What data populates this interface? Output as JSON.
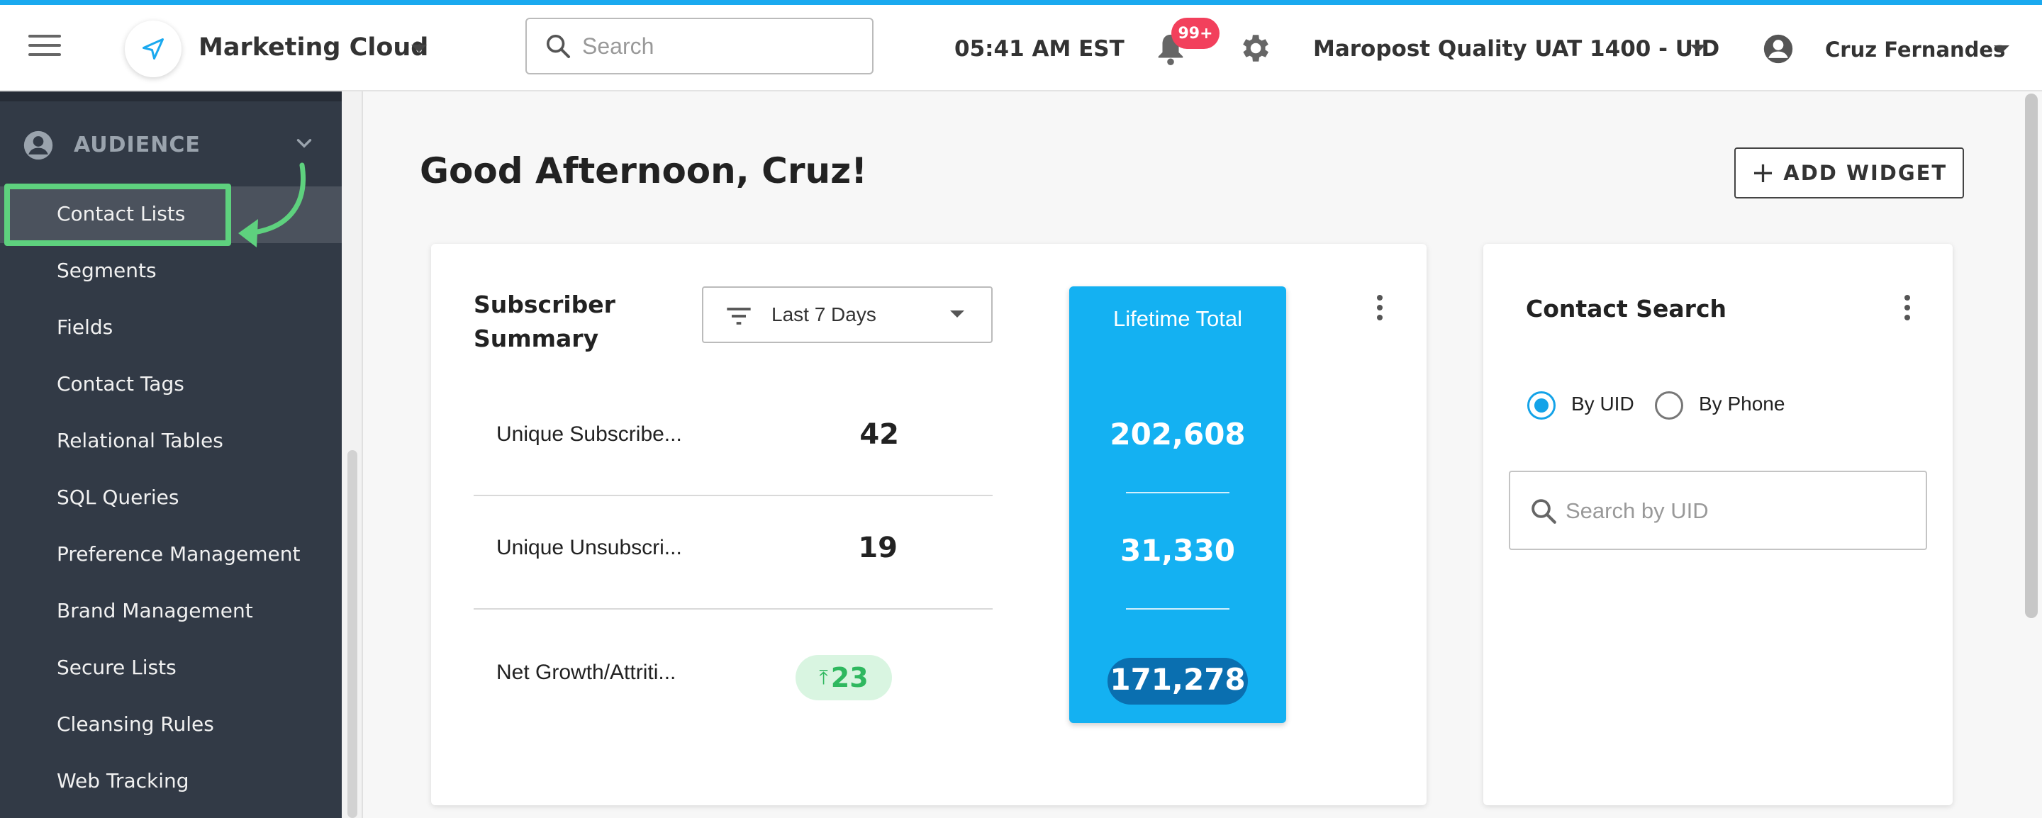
{
  "header": {
    "app_name": "Marketing Cloud",
    "search_placeholder": "Search",
    "time": "05:41 AM EST",
    "notification_badge": "99+",
    "account_name": "Maropost Quality UAT 1400 - UID",
    "user_name": "Cruz Fernandes"
  },
  "sidebar": {
    "section_label": "AUDIENCE",
    "items": [
      {
        "label": "Contact Lists",
        "active": true
      },
      {
        "label": "Segments"
      },
      {
        "label": "Fields"
      },
      {
        "label": "Contact Tags"
      },
      {
        "label": "Relational Tables"
      },
      {
        "label": "SQL Queries"
      },
      {
        "label": "Preference Management"
      },
      {
        "label": "Brand Management"
      },
      {
        "label": "Secure Lists"
      },
      {
        "label": "Cleansing Rules"
      },
      {
        "label": "Web Tracking"
      }
    ]
  },
  "main": {
    "greeting": "Good Afternoon, Cruz!",
    "add_widget_label": "ADD WIDGET"
  },
  "subscriber_summary": {
    "title": "Subscriber Summary",
    "period": "Last 7 Days",
    "rows": [
      {
        "label": "Unique Subscribe...",
        "value": "42"
      },
      {
        "label": "Unique Unsubscri...",
        "value": "19"
      },
      {
        "label": "Net Growth/Attriti...",
        "value": "23"
      }
    ],
    "lifetime": {
      "title": "Lifetime Total",
      "values": [
        "202,608",
        "31,330",
        "171,278"
      ]
    }
  },
  "contact_search": {
    "title": "Contact Search",
    "options": [
      "By UID",
      "By Phone"
    ],
    "selected": "By UID",
    "input_placeholder": "Search by UID"
  },
  "colors": {
    "accent": "#14b1f2",
    "sidebar_bg": "#323a46",
    "highlight": "#5ed17e",
    "badge": "#f2405c",
    "growth": "#2fb85f"
  }
}
